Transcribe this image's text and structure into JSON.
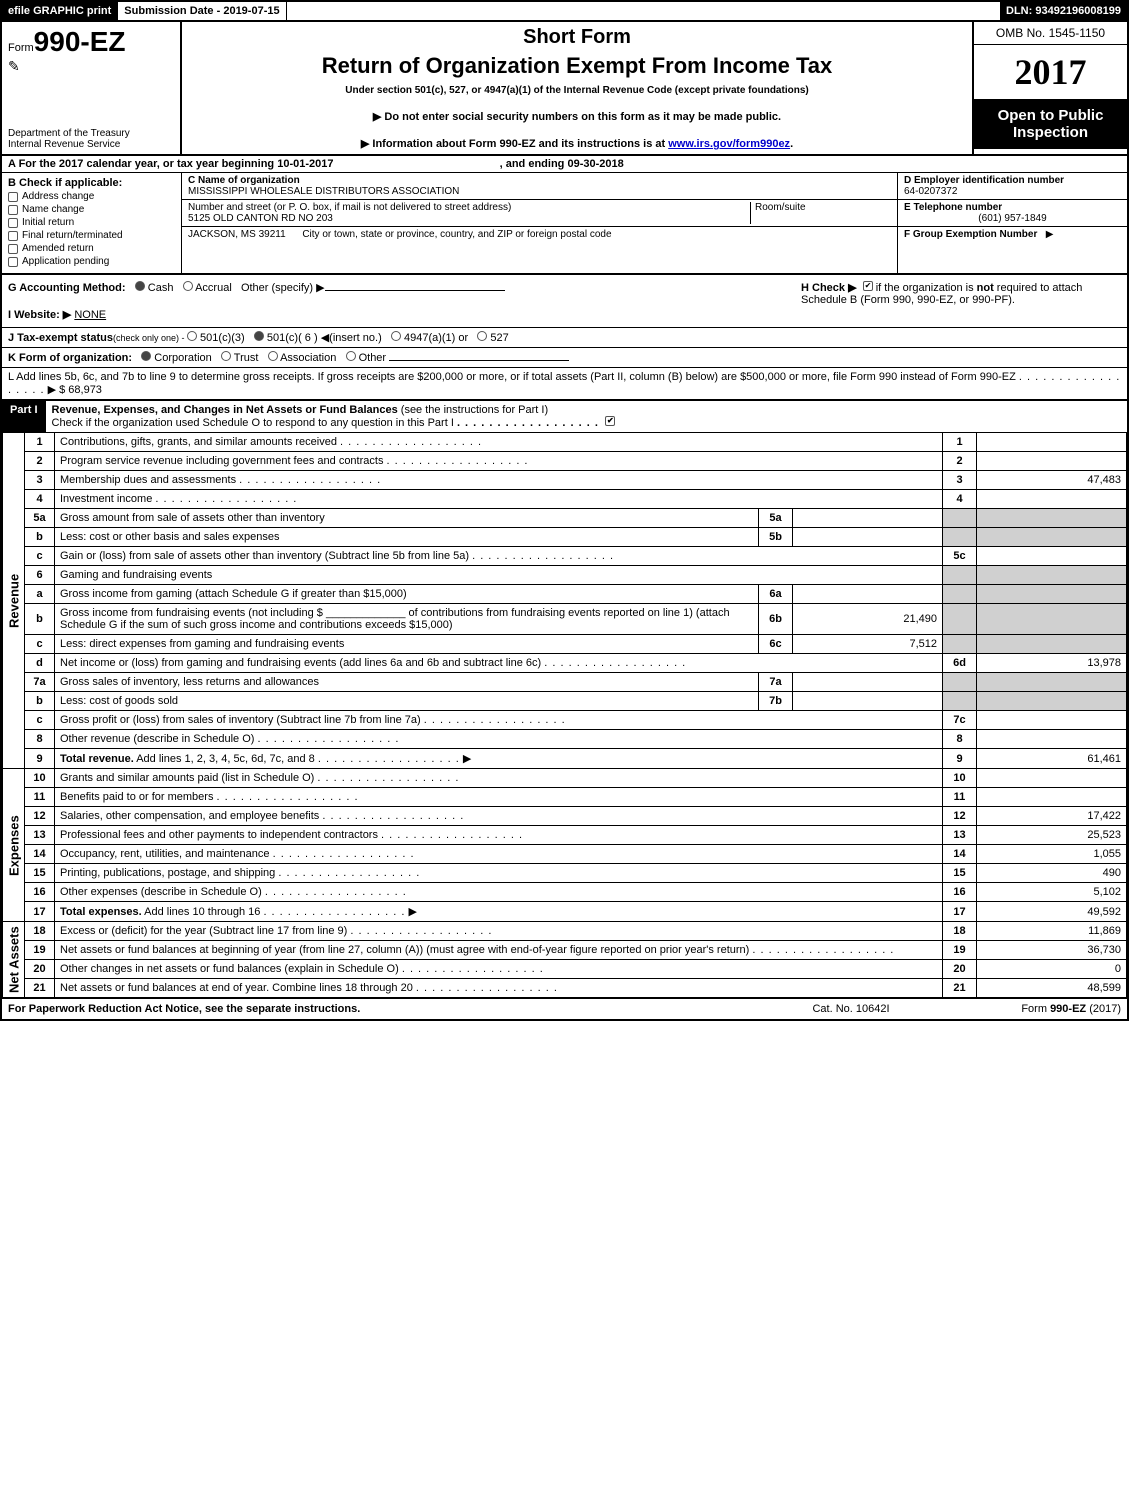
{
  "topbar": {
    "efile": "efile GRAPHIC print",
    "submission_label": "Submission Date - ",
    "submission_date": "2019-07-15",
    "dln_label": "DLN: ",
    "dln": "93492196008199"
  },
  "header": {
    "form_prefix": "Form",
    "form_no": "990-EZ",
    "dept1": "Department of the Treasury",
    "dept2": "Internal Revenue Service",
    "shortform": "Short Form",
    "title": "Return of Organization Exempt From Income Tax",
    "under": "Under section 501(c), 527, or 4947(a)(1) of the Internal Revenue Code (except private foundations)",
    "note1": "▶ Do not enter social security numbers on this form as it may be made public.",
    "note2_pre": "▶ Information about Form 990-EZ and its instructions is at ",
    "note2_link": "www.irs.gov/form990ez",
    "note2_post": ".",
    "omb": "OMB No. 1545-1150",
    "year": "2017",
    "open1": "Open to Public",
    "open2": "Inspection"
  },
  "rowA": {
    "prefix": "A  For the 2017 calendar year, or tax year beginning ",
    "begin": "10-01-2017",
    "mid": ", and ending ",
    "end": "09-30-2018"
  },
  "sectionB": {
    "b_label": "B  Check if applicable:",
    "checks": [
      {
        "label": "Address change"
      },
      {
        "label": "Name change"
      },
      {
        "label": "Initial return"
      },
      {
        "label": "Final return/terminated"
      },
      {
        "label": "Amended return"
      },
      {
        "label": "Application pending"
      }
    ],
    "c_label": "C Name of organization",
    "c_name": "MISSISSIPPI WHOLESALE DISTRIBUTORS ASSOCIATION",
    "street_label": "Number and street (or P. O. box, if mail is not delivered to street address)",
    "street": "5125 OLD CANTON RD NO 203",
    "room_label": "Room/suite",
    "city_label": "City or town, state or province, country, and ZIP or foreign postal code",
    "city": "JACKSON, MS  39211",
    "d_label": "D Employer identification number",
    "d_val": "64-0207372",
    "e_label": "E Telephone number",
    "e_val": "(601) 957-1849",
    "f_label": "F Group Exemption Number",
    "f_arrow": "▶"
  },
  "rowG": {
    "g_label": "G Accounting Method:",
    "cash": "Cash",
    "accrual": "Accrual",
    "other": "Other (specify) ▶",
    "h_label": "H  Check ▶",
    "h_text1": " if the organization is ",
    "h_not": "not",
    "h_text2": " required to attach Schedule B (Form 990, 990-EZ, or 990-PF).",
    "i_label": "I Website: ▶",
    "i_val": "NONE"
  },
  "rowJ": {
    "label": "J Tax-exempt status",
    "sub": "(check only one) - ",
    "opts": [
      "501(c)(3)",
      "501(c)( 6 ) ◀(insert no.)",
      "4947(a)(1) or",
      "527"
    ]
  },
  "rowK": {
    "label": "K Form of organization:",
    "opts": [
      "Corporation",
      "Trust",
      "Association",
      "Other"
    ]
  },
  "rowL": {
    "text": "L Add lines 5b, 6c, and 7b to line 9 to determine gross receipts. If gross receipts are $200,000 or more, or if total assets (Part II, column (B) below) are $500,000 or more, file Form 990 instead of Form 990-EZ",
    "arrow": "▶",
    "amount": "$ 68,973"
  },
  "partI": {
    "label": "Part I",
    "title": "Revenue, Expenses, and Changes in Net Assets or Fund Balances",
    "title_note": " (see the instructions for Part I)",
    "check_line": "Check if the organization used Schedule O to respond to any question in this Part I"
  },
  "sections": {
    "revenue_label": "Revenue",
    "expenses_label": "Expenses",
    "netassets_label": "Net Assets"
  },
  "lines": [
    {
      "sec": "rev",
      "n": "1",
      "desc": "Contributions, gifts, grants, and similar amounts received",
      "rnum": "1",
      "rval": ""
    },
    {
      "sec": "rev",
      "n": "2",
      "desc": "Program service revenue including government fees and contracts",
      "rnum": "2",
      "rval": ""
    },
    {
      "sec": "rev",
      "n": "3",
      "desc": "Membership dues and assessments",
      "rnum": "3",
      "rval": "47,483"
    },
    {
      "sec": "rev",
      "n": "4",
      "desc": "Investment income",
      "rnum": "4",
      "rval": ""
    },
    {
      "sec": "rev",
      "n": "5a",
      "desc": "Gross amount from sale of assets other than inventory",
      "subnum": "5a",
      "subval": "",
      "shade": true
    },
    {
      "sec": "rev",
      "n": "b",
      "desc": "Less: cost or other basis and sales expenses",
      "subnum": "5b",
      "subval": "",
      "shade": true
    },
    {
      "sec": "rev",
      "n": "c",
      "desc": "Gain or (loss) from sale of assets other than inventory (Subtract line 5b from line 5a)",
      "rnum": "5c",
      "rval": ""
    },
    {
      "sec": "rev",
      "n": "6",
      "desc": "Gaming and fundraising events",
      "shade": true,
      "nosub": true
    },
    {
      "sec": "rev",
      "n": "a",
      "desc": "Gross income from gaming (attach Schedule G if greater than $15,000)",
      "subnum": "6a",
      "subval": "",
      "shade": true
    },
    {
      "sec": "rev",
      "n": "b",
      "desc": "Gross income from fundraising events (not including $ _____________ of contributions from fundraising events reported on line 1) (attach Schedule G if the sum of such gross income and contributions exceeds $15,000)",
      "subnum": "6b",
      "subval": "21,490",
      "shade": true
    },
    {
      "sec": "rev",
      "n": "c",
      "desc": "Less: direct expenses from gaming and fundraising events",
      "subnum": "6c",
      "subval": "7,512",
      "shade": true
    },
    {
      "sec": "rev",
      "n": "d",
      "desc": "Net income or (loss) from gaming and fundraising events (add lines 6a and 6b and subtract line 6c)",
      "rnum": "6d",
      "rval": "13,978"
    },
    {
      "sec": "rev",
      "n": "7a",
      "desc": "Gross sales of inventory, less returns and allowances",
      "subnum": "7a",
      "subval": "",
      "shade": true
    },
    {
      "sec": "rev",
      "n": "b",
      "desc": "Less: cost of goods sold",
      "subnum": "7b",
      "subval": "",
      "shade": true
    },
    {
      "sec": "rev",
      "n": "c",
      "desc": "Gross profit or (loss) from sales of inventory (Subtract line 7b from line 7a)",
      "rnum": "7c",
      "rval": ""
    },
    {
      "sec": "rev",
      "n": "8",
      "desc": "Other revenue (describe in Schedule O)",
      "rnum": "8",
      "rval": ""
    },
    {
      "sec": "rev",
      "n": "9",
      "desc": "Total revenue. Add lines 1, 2, 3, 4, 5c, 6d, 7c, and 8",
      "rnum": "9",
      "rval": "61,461",
      "bold": true,
      "arrow": true
    },
    {
      "sec": "exp",
      "n": "10",
      "desc": "Grants and similar amounts paid (list in Schedule O)",
      "rnum": "10",
      "rval": ""
    },
    {
      "sec": "exp",
      "n": "11",
      "desc": "Benefits paid to or for members",
      "rnum": "11",
      "rval": ""
    },
    {
      "sec": "exp",
      "n": "12",
      "desc": "Salaries, other compensation, and employee benefits",
      "rnum": "12",
      "rval": "17,422"
    },
    {
      "sec": "exp",
      "n": "13",
      "desc": "Professional fees and other payments to independent contractors",
      "rnum": "13",
      "rval": "25,523"
    },
    {
      "sec": "exp",
      "n": "14",
      "desc": "Occupancy, rent, utilities, and maintenance",
      "rnum": "14",
      "rval": "1,055"
    },
    {
      "sec": "exp",
      "n": "15",
      "desc": "Printing, publications, postage, and shipping",
      "rnum": "15",
      "rval": "490"
    },
    {
      "sec": "exp",
      "n": "16",
      "desc": "Other expenses (describe in Schedule O)",
      "rnum": "16",
      "rval": "5,102"
    },
    {
      "sec": "exp",
      "n": "17",
      "desc": "Total expenses. Add lines 10 through 16",
      "rnum": "17",
      "rval": "49,592",
      "bold": true,
      "arrow": true
    },
    {
      "sec": "net",
      "n": "18",
      "desc": "Excess or (deficit) for the year (Subtract line 17 from line 9)",
      "rnum": "18",
      "rval": "11,869"
    },
    {
      "sec": "net",
      "n": "19",
      "desc": "Net assets or fund balances at beginning of year (from line 27, column (A)) (must agree with end-of-year figure reported on prior year's return)",
      "rnum": "19",
      "rval": "36,730",
      "twoline": true
    },
    {
      "sec": "net",
      "n": "20",
      "desc": "Other changes in net assets or fund balances (explain in Schedule O)",
      "rnum": "20",
      "rval": "0"
    },
    {
      "sec": "net",
      "n": "21",
      "desc": "Net assets or fund balances at end of year. Combine lines 18 through 20",
      "rnum": "21",
      "rval": "48,599"
    }
  ],
  "footer": {
    "left": "For Paperwork Reduction Act Notice, see the separate instructions.",
    "mid": "Cat. No. 10642I",
    "right_pre": "Form ",
    "right_bold": "990-EZ",
    "right_post": " (2017)"
  },
  "colors": {
    "black": "#000000",
    "white": "#ffffff",
    "shade": "#d0d0d0",
    "link": "#0000cc"
  }
}
